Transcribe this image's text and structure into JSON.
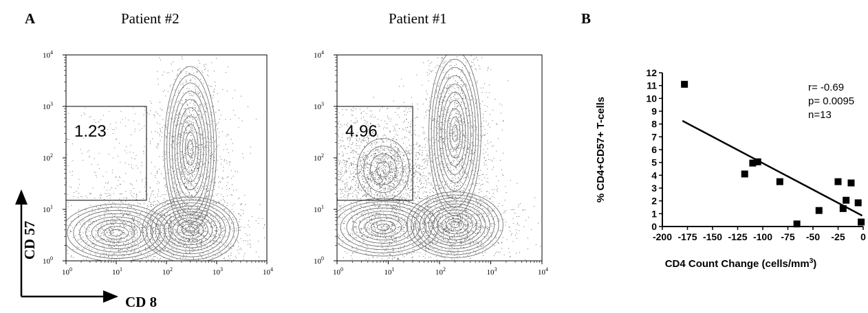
{
  "panel_a": {
    "letter": "A",
    "plots": [
      {
        "title": "Patient #2",
        "gate_value": "1.23"
      },
      {
        "title": "Patient #1",
        "gate_value": "4.96"
      }
    ],
    "tick_labels": [
      "10",
      "10",
      "10",
      "10",
      "10"
    ],
    "tick_exponents": [
      "0",
      "1",
      "2",
      "3",
      "4"
    ],
    "axis_y_label": "CD 57",
    "axis_x_label": "CD 8"
  },
  "panel_b": {
    "letter": "B",
    "stats": {
      "r": "r= -0.69",
      "p": "p= 0.0095",
      "n": "n=13"
    }
  },
  "chart_data": [
    {
      "type": "contour",
      "title": "Patient #2",
      "xlabel": "CD 8",
      "ylabel": "CD 57",
      "xscale": "log",
      "yscale": "log",
      "xlim": [
        1,
        10000
      ],
      "ylim": [
        1,
        10000
      ],
      "gate": {
        "x_range": [
          1,
          40
        ],
        "y_range": [
          15,
          1000
        ],
        "percent": 1.23
      },
      "populations": [
        {
          "center": [
            10,
            3.5
          ]
        },
        {
          "center": [
            300,
            4
          ]
        },
        {
          "center": [
            300,
            150
          ]
        }
      ]
    },
    {
      "type": "contour",
      "title": "Patient #1",
      "xlabel": "CD 8",
      "ylabel": "CD 57",
      "xscale": "log",
      "yscale": "log",
      "xlim": [
        1,
        10000
      ],
      "ylim": [
        1,
        10000
      ],
      "gate": {
        "x_range": [
          1,
          30
        ],
        "y_range": [
          15,
          1000
        ],
        "percent": 4.96
      },
      "populations": [
        {
          "center": [
            8,
            4.5
          ]
        },
        {
          "center": [
            200,
            5
          ]
        },
        {
          "center": [
            200,
            300
          ]
        },
        {
          "center": [
            8,
            60
          ]
        }
      ]
    },
    {
      "type": "scatter",
      "title": "",
      "xlabel": "CD4 Count Change (cells/mm",
      "xlabel_sup": "3",
      "xlabel_end": ")",
      "ylabel": "% CD4+CD57+ T-cells",
      "xlim": [
        -200,
        0
      ],
      "ylim": [
        0,
        12
      ],
      "xticks": [
        -200,
        -175,
        -150,
        -125,
        -100,
        -75,
        -50,
        -25,
        0
      ],
      "yticks": [
        0,
        1,
        2,
        3,
        4,
        5,
        6,
        7,
        8,
        9,
        10,
        11,
        12
      ],
      "x": [
        -178,
        -118,
        -110,
        -105,
        -83,
        -66,
        -44,
        -25,
        -20,
        -17,
        -12,
        -5,
        -2
      ],
      "y": [
        11.1,
        4.1,
        4.95,
        5.05,
        3.5,
        0.2,
        1.25,
        3.5,
        1.4,
        2.05,
        3.4,
        1.85,
        0.35
      ],
      "fit_line": {
        "x": [
          -180,
          -1
        ],
        "y": [
          8.25,
          0.85
        ]
      }
    }
  ]
}
